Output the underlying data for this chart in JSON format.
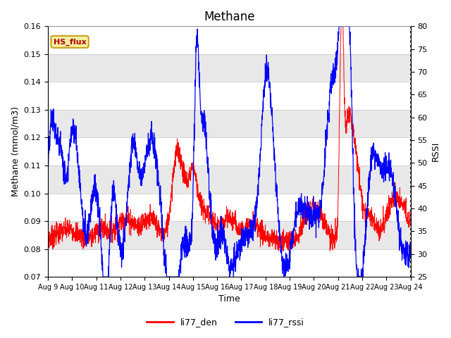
{
  "title": "Methane",
  "ylabel_left": "Methane (mmol/m3)",
  "ylabel_right": "RSSI",
  "xlabel": "Time",
  "ylim_left": [
    0.07,
    0.16
  ],
  "ylim_right": [
    25,
    80
  ],
  "yticks_left": [
    0.07,
    0.08,
    0.09,
    0.1,
    0.11,
    0.12,
    0.13,
    0.14,
    0.15,
    0.16
  ],
  "yticks_right": [
    25,
    30,
    35,
    40,
    45,
    50,
    55,
    60,
    65,
    70,
    75,
    80
  ],
  "xtick_labels": [
    "Aug 9",
    "Aug 10",
    "Aug 11",
    "Aug 12",
    "Aug 13",
    "Aug 14",
    "Aug 15",
    "Aug 16",
    "Aug 17",
    "Aug 18",
    "Aug 19",
    "Aug 20",
    "Aug 21",
    "Aug 22",
    "Aug 23",
    "Aug 24"
  ],
  "annotation_text": "HS_flux",
  "annotation_bg": "#f5f0a0",
  "annotation_border": "#c8a020",
  "color_red": "#ff0000",
  "color_blue": "#0000ff",
  "legend_label_red": "li77_den",
  "legend_label_blue": "li77_rssi",
  "background_color": "#ffffff",
  "plot_bg": "#ffffff",
  "band_color": "#e8e8e8",
  "grid_color": "#cccccc",
  "title_fontsize": 12,
  "axis_fontsize": 9,
  "tick_fontsize": 8
}
